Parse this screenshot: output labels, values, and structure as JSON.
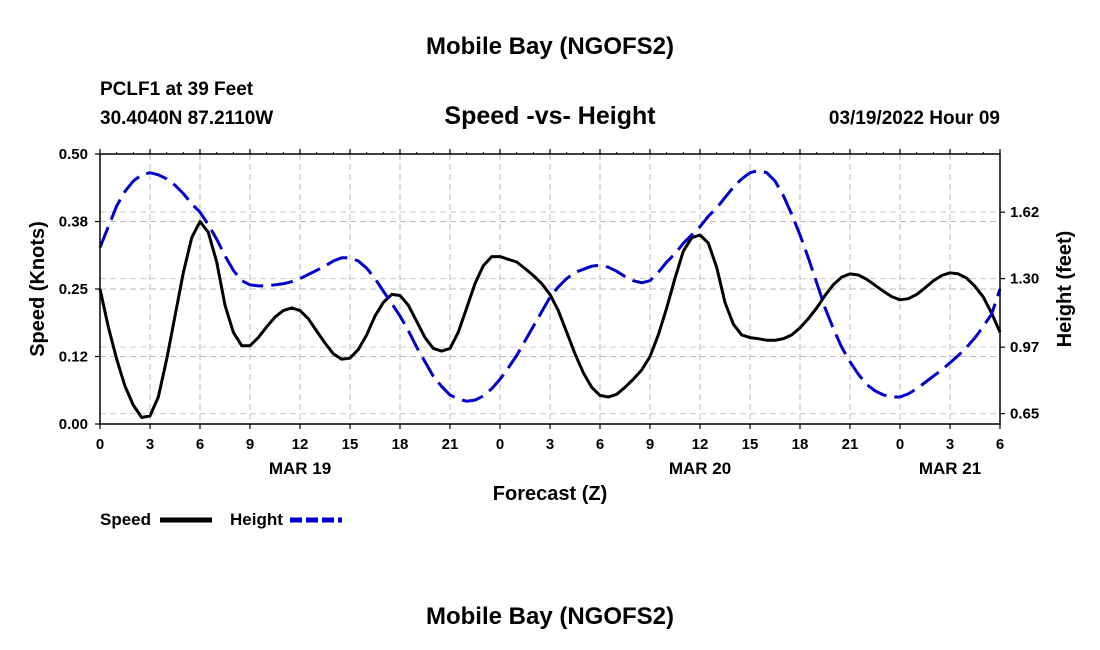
{
  "header": {
    "title": "Mobile Bay (NGOFS2)",
    "station": "PCLF1 at 39 Feet",
    "coords": "30.4040N  87.2110W",
    "subtitle": "Speed -vs- Height",
    "datetime": "03/19/2022 Hour 09",
    "footer_title": "Mobile Bay (NGOFS2)"
  },
  "chart_data": {
    "type": "line",
    "title": "Speed -vs- Height",
    "xlabel": "Forecast (Z)",
    "ylabel_left": "Speed (Knots)",
    "ylabel_right": "Height (feet)",
    "x_range_hours": [
      0,
      54
    ],
    "ylim_left": [
      0,
      0.5
    ],
    "ylim_right": [
      0.6,
      1.9
    ],
    "x_ticks": [
      {
        "h": 0,
        "label": "0"
      },
      {
        "h": 3,
        "label": "3"
      },
      {
        "h": 6,
        "label": "6"
      },
      {
        "h": 9,
        "label": "9"
      },
      {
        "h": 12,
        "label": "12"
      },
      {
        "h": 15,
        "label": "15"
      },
      {
        "h": 18,
        "label": "18"
      },
      {
        "h": 21,
        "label": "21"
      },
      {
        "h": 24,
        "label": "0"
      },
      {
        "h": 27,
        "label": "3"
      },
      {
        "h": 30,
        "label": "6"
      },
      {
        "h": 33,
        "label": "9"
      },
      {
        "h": 36,
        "label": "12"
      },
      {
        "h": 39,
        "label": "15"
      },
      {
        "h": 42,
        "label": "18"
      },
      {
        "h": 45,
        "label": "21"
      },
      {
        "h": 48,
        "label": "0"
      },
      {
        "h": 51,
        "label": "3"
      },
      {
        "h": 54,
        "label": "6"
      }
    ],
    "date_labels": [
      {
        "h": 12,
        "label": "MAR 19"
      },
      {
        "h": 36,
        "label": "MAR 20"
      },
      {
        "h": 51,
        "label": "MAR 21"
      }
    ],
    "left_ticks": [
      {
        "v": 0.0,
        "label": "0.00"
      },
      {
        "v": 0.125,
        "label": "0.12"
      },
      {
        "v": 0.25,
        "label": "0.25"
      },
      {
        "v": 0.375,
        "label": "0.38"
      },
      {
        "v": 0.5,
        "label": "0.50"
      }
    ],
    "right_ticks": [
      {
        "v": 0.65,
        "label": "0.65"
      },
      {
        "v": 0.97,
        "label": "0.97"
      },
      {
        "v": 1.3,
        "label": "1.30"
      },
      {
        "v": 1.62,
        "label": "1.62"
      }
    ],
    "series": [
      {
        "name": "Speed",
        "axis": "left",
        "color": "#000000",
        "dash": "solid",
        "points": [
          [
            0,
            0.25
          ],
          [
            0.5,
            0.18
          ],
          [
            1,
            0.12
          ],
          [
            1.5,
            0.07
          ],
          [
            2,
            0.035
          ],
          [
            2.5,
            0.012
          ],
          [
            3,
            0.015
          ],
          [
            3.5,
            0.05
          ],
          [
            4,
            0.12
          ],
          [
            4.5,
            0.2
          ],
          [
            5,
            0.28
          ],
          [
            5.5,
            0.345
          ],
          [
            6,
            0.375
          ],
          [
            6.5,
            0.355
          ],
          [
            7,
            0.3
          ],
          [
            7.5,
            0.22
          ],
          [
            8,
            0.17
          ],
          [
            8.5,
            0.145
          ],
          [
            9,
            0.145
          ],
          [
            9.5,
            0.16
          ],
          [
            10,
            0.18
          ],
          [
            10.5,
            0.198
          ],
          [
            11,
            0.21
          ],
          [
            11.5,
            0.215
          ],
          [
            12,
            0.21
          ],
          [
            12.5,
            0.195
          ],
          [
            13,
            0.172
          ],
          [
            13.5,
            0.15
          ],
          [
            14,
            0.13
          ],
          [
            14.5,
            0.12
          ],
          [
            15,
            0.122
          ],
          [
            15.5,
            0.138
          ],
          [
            16,
            0.165
          ],
          [
            16.5,
            0.2
          ],
          [
            17,
            0.225
          ],
          [
            17.5,
            0.24
          ],
          [
            18,
            0.238
          ],
          [
            18.5,
            0.22
          ],
          [
            19,
            0.19
          ],
          [
            19.5,
            0.16
          ],
          [
            20,
            0.14
          ],
          [
            20.5,
            0.135
          ],
          [
            21,
            0.14
          ],
          [
            21.5,
            0.17
          ],
          [
            22,
            0.215
          ],
          [
            22.5,
            0.26
          ],
          [
            23,
            0.293
          ],
          [
            23.5,
            0.31
          ],
          [
            24,
            0.31
          ],
          [
            24.5,
            0.305
          ],
          [
            25,
            0.3
          ],
          [
            25.5,
            0.288
          ],
          [
            26,
            0.275
          ],
          [
            26.5,
            0.26
          ],
          [
            27,
            0.24
          ],
          [
            27.5,
            0.21
          ],
          [
            28,
            0.17
          ],
          [
            28.5,
            0.13
          ],
          [
            29,
            0.095
          ],
          [
            29.5,
            0.068
          ],
          [
            30,
            0.053
          ],
          [
            30.5,
            0.05
          ],
          [
            31,
            0.055
          ],
          [
            31.5,
            0.068
          ],
          [
            32,
            0.083
          ],
          [
            32.5,
            0.1
          ],
          [
            33,
            0.125
          ],
          [
            33.5,
            0.165
          ],
          [
            34,
            0.215
          ],
          [
            34.5,
            0.27
          ],
          [
            35,
            0.32
          ],
          [
            35.5,
            0.345
          ],
          [
            36,
            0.35
          ],
          [
            36.5,
            0.335
          ],
          [
            37,
            0.29
          ],
          [
            37.5,
            0.225
          ],
          [
            38,
            0.185
          ],
          [
            38.5,
            0.165
          ],
          [
            39,
            0.16
          ],
          [
            39.5,
            0.158
          ],
          [
            40,
            0.155
          ],
          [
            40.5,
            0.155
          ],
          [
            41,
            0.158
          ],
          [
            41.5,
            0.165
          ],
          [
            42,
            0.178
          ],
          [
            42.5,
            0.195
          ],
          [
            43,
            0.215
          ],
          [
            43.5,
            0.238
          ],
          [
            44,
            0.258
          ],
          [
            44.5,
            0.272
          ],
          [
            45,
            0.278
          ],
          [
            45.5,
            0.276
          ],
          [
            46,
            0.268
          ],
          [
            46.5,
            0.257
          ],
          [
            47,
            0.246
          ],
          [
            47.5,
            0.236
          ],
          [
            48,
            0.23
          ],
          [
            48.5,
            0.232
          ],
          [
            49,
            0.24
          ],
          [
            49.5,
            0.252
          ],
          [
            50,
            0.265
          ],
          [
            50.5,
            0.275
          ],
          [
            51,
            0.28
          ],
          [
            51.5,
            0.278
          ],
          [
            52,
            0.27
          ],
          [
            52.5,
            0.255
          ],
          [
            53,
            0.235
          ],
          [
            53.5,
            0.205
          ],
          [
            54,
            0.17
          ]
        ]
      },
      {
        "name": "Height",
        "axis": "right",
        "color": "#0000cc",
        "dash": "dashed",
        "points": [
          [
            0,
            1.45
          ],
          [
            0.5,
            1.55
          ],
          [
            1,
            1.65
          ],
          [
            1.5,
            1.72
          ],
          [
            2,
            1.77
          ],
          [
            2.5,
            1.8
          ],
          [
            3,
            1.81
          ],
          [
            3.5,
            1.8
          ],
          [
            4,
            1.78
          ],
          [
            4.5,
            1.75
          ],
          [
            5,
            1.71
          ],
          [
            5.5,
            1.66
          ],
          [
            6,
            1.62
          ],
          [
            6.5,
            1.56
          ],
          [
            7,
            1.49
          ],
          [
            7.5,
            1.41
          ],
          [
            8,
            1.34
          ],
          [
            8.5,
            1.29
          ],
          [
            9,
            1.27
          ],
          [
            9.5,
            1.265
          ],
          [
            10,
            1.265
          ],
          [
            10.5,
            1.27
          ],
          [
            11,
            1.275
          ],
          [
            11.5,
            1.285
          ],
          [
            12,
            1.3
          ],
          [
            12.5,
            1.32
          ],
          [
            13,
            1.34
          ],
          [
            13.5,
            1.36
          ],
          [
            14,
            1.385
          ],
          [
            14.5,
            1.4
          ],
          [
            15,
            1.4
          ],
          [
            15.5,
            1.385
          ],
          [
            16,
            1.35
          ],
          [
            16.5,
            1.3
          ],
          [
            17,
            1.24
          ],
          [
            17.5,
            1.18
          ],
          [
            18,
            1.12
          ],
          [
            18.5,
            1.05
          ],
          [
            19,
            0.97
          ],
          [
            19.5,
            0.9
          ],
          [
            20,
            0.83
          ],
          [
            20.5,
            0.78
          ],
          [
            21,
            0.74
          ],
          [
            21.5,
            0.72
          ],
          [
            22,
            0.71
          ],
          [
            22.5,
            0.715
          ],
          [
            23,
            0.735
          ],
          [
            23.5,
            0.77
          ],
          [
            24,
            0.815
          ],
          [
            24.5,
            0.87
          ],
          [
            25,
            0.93
          ],
          [
            25.5,
            1.0
          ],
          [
            26,
            1.07
          ],
          [
            26.5,
            1.14
          ],
          [
            27,
            1.21
          ],
          [
            27.5,
            1.26
          ],
          [
            28,
            1.3
          ],
          [
            28.5,
            1.33
          ],
          [
            29,
            1.345
          ],
          [
            29.5,
            1.36
          ],
          [
            30,
            1.365
          ],
          [
            30.5,
            1.355
          ],
          [
            31,
            1.335
          ],
          [
            31.5,
            1.31
          ],
          [
            32,
            1.29
          ],
          [
            32.5,
            1.28
          ],
          [
            33,
            1.29
          ],
          [
            33.5,
            1.33
          ],
          [
            34,
            1.38
          ],
          [
            34.5,
            1.42
          ],
          [
            35,
            1.47
          ],
          [
            35.5,
            1.51
          ],
          [
            36,
            1.55
          ],
          [
            36.5,
            1.6
          ],
          [
            37,
            1.64
          ],
          [
            37.5,
            1.69
          ],
          [
            38,
            1.74
          ],
          [
            38.5,
            1.78
          ],
          [
            39,
            1.81
          ],
          [
            39.5,
            1.82
          ],
          [
            40,
            1.81
          ],
          [
            40.5,
            1.77
          ],
          [
            41,
            1.7
          ],
          [
            41.5,
            1.61
          ],
          [
            42,
            1.51
          ],
          [
            42.5,
            1.4
          ],
          [
            43,
            1.28
          ],
          [
            43.5,
            1.16
          ],
          [
            44,
            1.06
          ],
          [
            44.5,
            0.97
          ],
          [
            45,
            0.9
          ],
          [
            45.5,
            0.84
          ],
          [
            46,
            0.79
          ],
          [
            46.5,
            0.76
          ],
          [
            47,
            0.74
          ],
          [
            47.5,
            0.73
          ],
          [
            48,
            0.73
          ],
          [
            48.5,
            0.745
          ],
          [
            49,
            0.77
          ],
          [
            49.5,
            0.8
          ],
          [
            50,
            0.83
          ],
          [
            50.5,
            0.86
          ],
          [
            51,
            0.895
          ],
          [
            51.5,
            0.93
          ],
          [
            52,
            0.97
          ],
          [
            52.5,
            1.015
          ],
          [
            53,
            1.07
          ],
          [
            53.5,
            1.13
          ],
          [
            54,
            1.25
          ]
        ]
      }
    ],
    "legend": [
      {
        "label": "Speed",
        "color": "#000000",
        "dash": "solid"
      },
      {
        "label": "Height",
        "color": "#0000cc",
        "dash": "dashed"
      }
    ],
    "grid": true,
    "legend_position": "bottom-left"
  }
}
